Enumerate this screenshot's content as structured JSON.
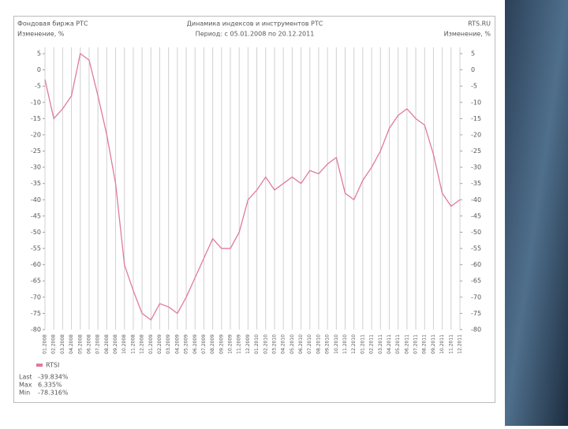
{
  "chart_data": {
    "type": "line",
    "source": "Фондовая биржа РТС",
    "site": "RTS.RU",
    "title": "Динамика индексов и инструментов РТС",
    "subtitle": "Период: с 05.01.2008 по 20.12.2011",
    "y_label": "Изменение, %",
    "y2_label": "Изменение, %",
    "categories": [
      "01.2008",
      "02.2008",
      "03.2008",
      "04.2008",
      "05.2008",
      "06.2008",
      "07.2008",
      "08.2008",
      "09.2008",
      "10.2008",
      "11.2008",
      "12.2008",
      "01.2009",
      "02.2009",
      "03.2009",
      "04.2009",
      "05.2009",
      "06.2009",
      "07.2009",
      "08.2009",
      "09.2009",
      "10.2009",
      "11.2009",
      "12.2009",
      "01.2010",
      "02.2010",
      "03.2010",
      "04.2010",
      "05.2010",
      "06.2010",
      "07.2010",
      "08.2010",
      "09.2010",
      "10.2010",
      "11.2010",
      "12.2010",
      "01.2011",
      "02.2011",
      "03.2011",
      "04.2011",
      "05.2011",
      "06.2011",
      "07.2011",
      "08.2011",
      "09.2011",
      "10.2011",
      "11.2011",
      "12.2011"
    ],
    "series": [
      {
        "name": "RTSI",
        "color": "#e07b9a",
        "values": [
          -3,
          -15,
          -12,
          -8,
          5,
          3,
          -8,
          -20,
          -35,
          -60,
          -68,
          -75,
          -77,
          -72,
          -73,
          -75,
          -70,
          -64,
          -58,
          -52,
          -55,
          -55,
          -50,
          -40,
          -37,
          -33,
          -37,
          -35,
          -33,
          -35,
          -31,
          -32,
          -29,
          -27,
          -38,
          -40,
          -34,
          -30,
          -25,
          -18,
          -14,
          -12,
          -15,
          -17,
          -26,
          -38,
          -42,
          -40
        ]
      }
    ],
    "ylim": [
      5,
      -80
    ],
    "yticks": [
      5,
      0,
      -5,
      -10,
      -15,
      -20,
      -25,
      -30,
      -35,
      -40,
      -45,
      -50,
      -55,
      -60,
      -65,
      -70,
      -75,
      -80
    ],
    "grid": "x",
    "stats": [
      {
        "label": "Last",
        "value": "-39.834%"
      },
      {
        "label": "Max",
        "value": "6.335%"
      },
      {
        "label": "Min",
        "value": "-78.316%"
      }
    ]
  }
}
